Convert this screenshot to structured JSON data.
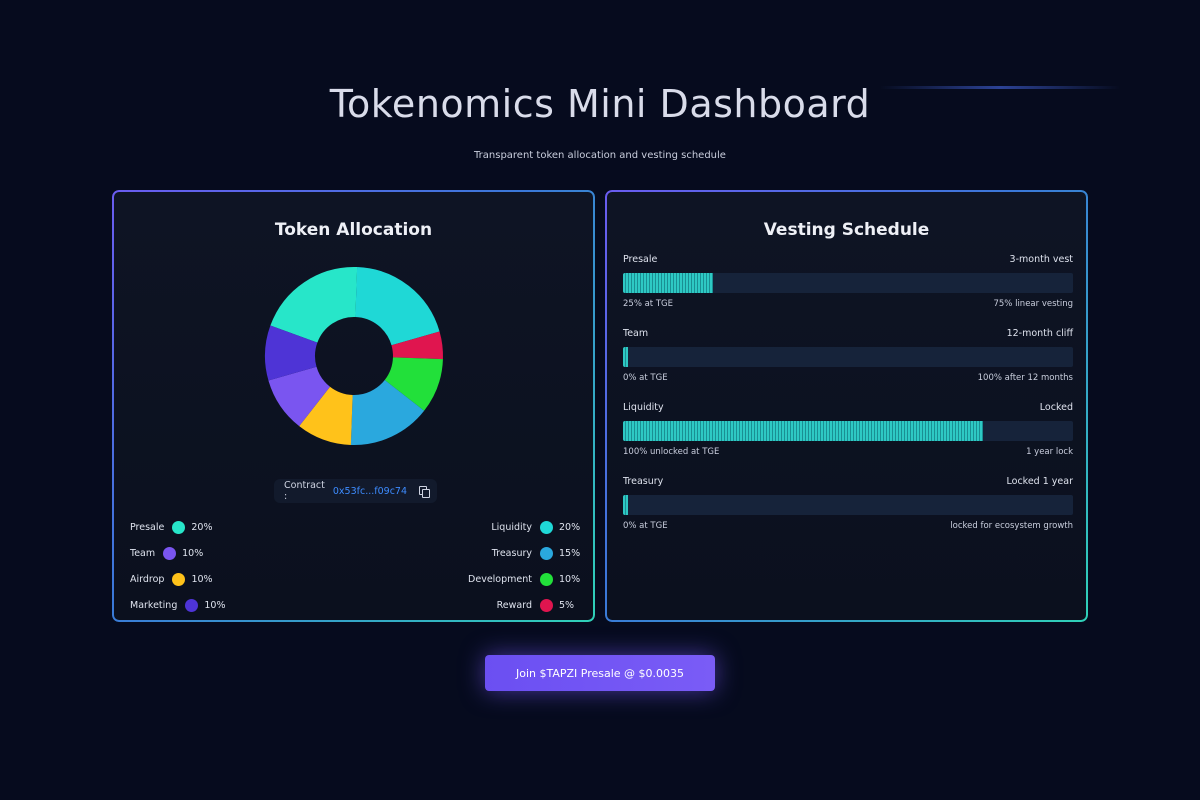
{
  "header": {
    "title": "Tokenomics Mini Dashboard",
    "subtitle": "Transparent token allocation and vesting schedule"
  },
  "allocation": {
    "title": "Token Allocation",
    "contract_label": "Contract :",
    "contract_value": "0x53fc...f09c74",
    "chart_data": {
      "type": "pie",
      "categories": [
        "Presale",
        "Liquidity",
        "Reward",
        "Development",
        "Treasury",
        "Airdrop",
        "Team",
        "Marketing"
      ],
      "values": [
        20,
        20,
        5,
        10,
        15,
        10,
        10,
        10
      ],
      "colors": [
        "#27e6c9",
        "#1fd8d6",
        "#e0154f",
        "#22e03a",
        "#2aa8de",
        "#ffc21a",
        "#7a55f0",
        "#4e34d6"
      ]
    },
    "legend_left": [
      {
        "name": "Presale",
        "pct": "20%",
        "color": "#27e6c9"
      },
      {
        "name": "Team",
        "pct": "10%",
        "color": "#7a55f0"
      },
      {
        "name": "Airdrop",
        "pct": "10%",
        "color": "#ffc21a"
      },
      {
        "name": "Marketing",
        "pct": "10%",
        "color": "#4e34d6"
      }
    ],
    "legend_right": [
      {
        "name": "Liquidity",
        "pct": "20%",
        "color": "#1fd8d6"
      },
      {
        "name": "Treasury",
        "pct": "15%",
        "color": "#2aa8de"
      },
      {
        "name": "Development",
        "pct": "10%",
        "color": "#22e03a"
      },
      {
        "name": "Reward",
        "pct": "5%",
        "color": "#e0154f"
      }
    ]
  },
  "vesting": {
    "title": "Vesting Schedule",
    "items": [
      {
        "name": "Presale",
        "schedule": "3-month vest",
        "fill": 0.2,
        "left_note": "25% at TGE",
        "right_note": "75% linear vesting"
      },
      {
        "name": "Team",
        "schedule": "12-month cliff",
        "fill": 0.01,
        "left_note": "0% at TGE",
        "right_note": "100% after 12 months"
      },
      {
        "name": "Liquidity",
        "schedule": "Locked",
        "fill": 0.8,
        "left_note": "100% unlocked at TGE",
        "right_note": "1 year lock"
      },
      {
        "name": "Treasury",
        "schedule": "Locked 1 year",
        "fill": 0.01,
        "left_note": "0% at TGE",
        "right_note": "locked for ecosystem growth"
      }
    ]
  },
  "cta": {
    "label": "Join $TAPZI Presale @ $0.0035"
  }
}
